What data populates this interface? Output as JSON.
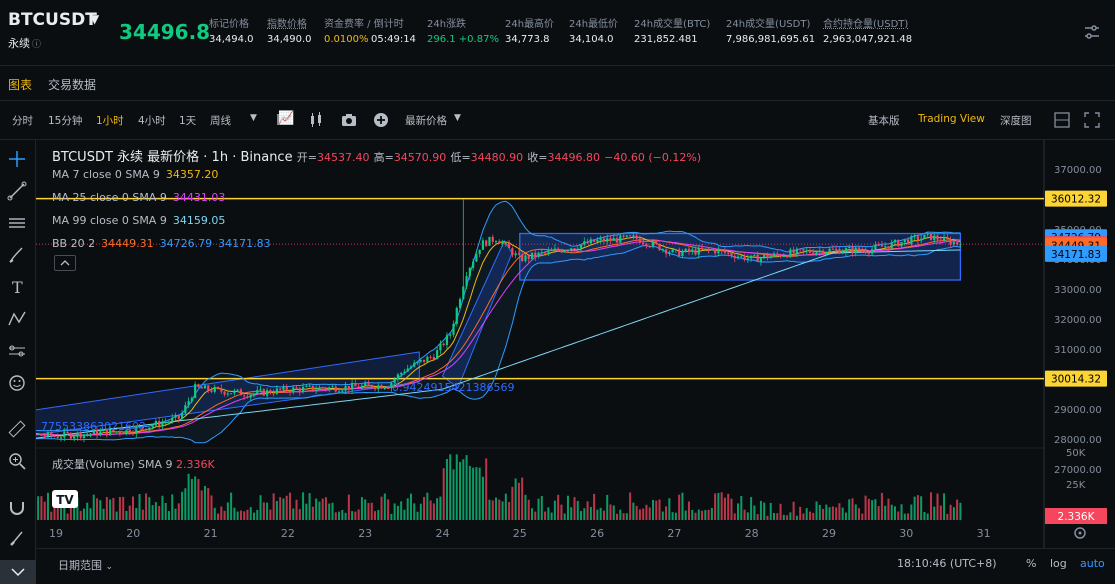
{
  "header": {
    "symbol": "BTCUSDT",
    "contract_type": "永续",
    "last_price": "34496.8",
    "stats": [
      {
        "label": "标记价格",
        "value": "34,494.0",
        "underline": false,
        "color": "#eaecef"
      },
      {
        "label": "指数价格",
        "value": "34,490.0",
        "underline": true,
        "color": "#eaecef"
      },
      {
        "label": "资金费率 / 倒计时",
        "value": "0.0100%",
        "value2": "05:49:14",
        "underline": false,
        "color": "#f0b90b"
      },
      {
        "label": "24h涨跌",
        "value": "296.1 +0.87%",
        "underline": false,
        "color": "#0ecb81"
      },
      {
        "label": "24h最高价",
        "value": "34,773.8",
        "underline": false,
        "color": "#eaecef"
      },
      {
        "label": "24h最低价",
        "value": "34,104.0",
        "underline": false,
        "color": "#eaecef"
      },
      {
        "label": "24h成交量(BTC)",
        "value": "231,852.481",
        "underline": false,
        "color": "#eaecef"
      },
      {
        "label": "24h成交量(USDT)",
        "value": "7,986,981,695.61",
        "underline": false,
        "color": "#eaecef"
      },
      {
        "label": "合约持仓量(USDT)",
        "value": "2,963,047,921.48",
        "underline": true,
        "color": "#eaecef"
      }
    ]
  },
  "tabs": {
    "chart": "图表",
    "trade_data": "交易数据"
  },
  "toolbar": {
    "intervals": [
      "分时",
      "15分钟",
      "1小时",
      "4小时",
      "1天",
      "周线"
    ],
    "active_interval": "1小时",
    "price_type": "最新价格",
    "views": [
      "基本版",
      "Trading View",
      "深度图"
    ],
    "active_view": "Trading View"
  },
  "chart_title": {
    "main": "BTCUSDT 永续 最新价格 · 1h · Binance",
    "open_label": "开=",
    "open": "34537.40",
    "high_label": "高=",
    "high": "34570.90",
    "low_label": "低=",
    "low": "34480.90",
    "close_label": "收=",
    "close": "34496.80",
    "change": "−40.60 (−0.12%)"
  },
  "legends": [
    {
      "label": "MA 7 close 0 SMA 9",
      "values": [
        "34357.20"
      ],
      "colors": [
        "#f0b90b"
      ]
    },
    {
      "label": "MA 25 close 0 SMA 9",
      "values": [
        "34431.03"
      ],
      "colors": [
        "#e040fb"
      ]
    },
    {
      "label": "MA 99 close 0 SMA 9",
      "values": [
        "34159.05"
      ],
      "colors": [
        "#7fd6f0"
      ]
    },
    {
      "label": "BB 20 2",
      "values": [
        "34449.31",
        "34726.79",
        "34171.83"
      ],
      "colors": [
        "#ff6a28",
        "#2f9bff",
        "#2f9bff"
      ]
    }
  ],
  "volume_legend": {
    "label": "成交量(Volume) SMA 9",
    "value": "2.336K"
  },
  "annotations": {
    "fib_value": "0.9424915421386569",
    "left_value": "7755338630216​02"
  },
  "price_axis": {
    "ticks": [
      "37000.00",
      "36000.00",
      "35000.00",
      "34000.00",
      "33000.00",
      "32000.00",
      "31000.00",
      "30000.00",
      "29000.00",
      "28000.00",
      "27000.00"
    ],
    "badges": [
      {
        "value": "36012.32",
        "bg": "#fcd535",
        "fg": "#000000"
      },
      {
        "value": "34726.79",
        "bg": "#2f9bff",
        "fg": "#000000"
      },
      {
        "value": "34496.80",
        "bg": "#f6465d",
        "fg": "#ffffff"
      },
      {
        "value": "34449.31",
        "bg": "#ff6a28",
        "fg": "#000000"
      },
      {
        "value": "34171.83",
        "bg": "#2f9bff",
        "fg": "#000000"
      },
      {
        "value": "30014.32",
        "bg": "#fcd535",
        "fg": "#000000"
      }
    ],
    "volume_ticks": [
      "50K",
      "25K"
    ],
    "volume_badge": "2.336K"
  },
  "time_axis": {
    "ticks": [
      "19",
      "20",
      "21",
      "22",
      "23",
      "24",
      "25",
      "26",
      "27",
      "28",
      "29",
      "30",
      "31"
    ]
  },
  "bottom": {
    "date_range": "日期范围",
    "clock": "18:10:46 (UTC+8)",
    "percent": "%",
    "log": "log",
    "auto": "auto"
  },
  "chart_data": {
    "type": "candlestick",
    "title": "BTCUSDT 永续 最新价格 · 1h · Binance",
    "ylim": [
      27000,
      37000
    ],
    "horizontal_lines": [
      36012.32,
      30014.32
    ],
    "anchors": [
      {
        "day": 18.0,
        "price": 28200
      },
      {
        "day": 19.0,
        "price": 28100
      },
      {
        "day": 20.0,
        "price": 28300
      },
      {
        "day": 20.6,
        "price": 28700
      },
      {
        "day": 20.8,
        "price": 29700
      },
      {
        "day": 21.5,
        "price": 29500
      },
      {
        "day": 22.0,
        "price": 29650
      },
      {
        "day": 22.5,
        "price": 29700
      },
      {
        "day": 23.0,
        "price": 29750
      },
      {
        "day": 23.3,
        "price": 29800
      },
      {
        "day": 23.5,
        "price": 30300
      },
      {
        "day": 23.9,
        "price": 30800
      },
      {
        "day": 24.1,
        "price": 31500
      },
      {
        "day": 24.3,
        "price": 33500
      },
      {
        "day": 24.5,
        "price": 34500
      },
      {
        "day": 24.7,
        "price": 34700
      },
      {
        "day": 25.0,
        "price": 34000
      },
      {
        "day": 25.5,
        "price": 34300
      },
      {
        "day": 26.0,
        "price": 34600
      },
      {
        "day": 26.5,
        "price": 34700
      },
      {
        "day": 27.0,
        "price": 34200
      },
      {
        "day": 27.5,
        "price": 34300
      },
      {
        "day": 28.0,
        "price": 34000
      },
      {
        "day": 28.5,
        "price": 34200
      },
      {
        "day": 29.0,
        "price": 34300
      },
      {
        "day": 29.5,
        "price": 34300
      },
      {
        "day": 30.0,
        "price": 34600
      },
      {
        "day": 30.3,
        "price": 34750
      },
      {
        "day": 30.7,
        "price": 34497
      }
    ]
  }
}
